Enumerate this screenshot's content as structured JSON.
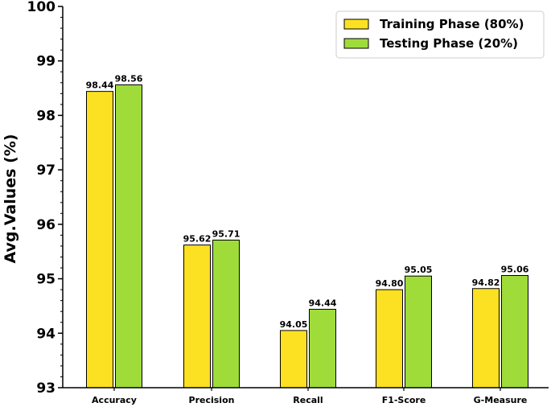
{
  "chart_data": {
    "type": "bar",
    "categories": [
      "Accuracy",
      "Precision",
      "Recall",
      "F1-Score",
      "G-Measure"
    ],
    "series": [
      {
        "name": "Training Phase (80%)",
        "color": "#fbe122",
        "values": [
          98.44,
          95.62,
          94.05,
          94.8,
          94.82
        ],
        "labels": [
          "98.44",
          "95.62",
          "94.05",
          "94.80",
          "94.82"
        ]
      },
      {
        "name": "Testing Phase (20%)",
        "color": "#9fdc3a",
        "values": [
          98.56,
          95.71,
          94.44,
          95.05,
          95.06
        ],
        "labels": [
          "98.56",
          "95.71",
          "94.44",
          "95.05",
          "95.06"
        ]
      }
    ],
    "ylabel": "Avg.Values (%)",
    "xlabel": "",
    "ylim": [
      93,
      100
    ],
    "yticks": [
      "93",
      "94",
      "95",
      "96",
      "97",
      "98",
      "99",
      "100"
    ],
    "legend_position": "top-right",
    "grid": false
  }
}
